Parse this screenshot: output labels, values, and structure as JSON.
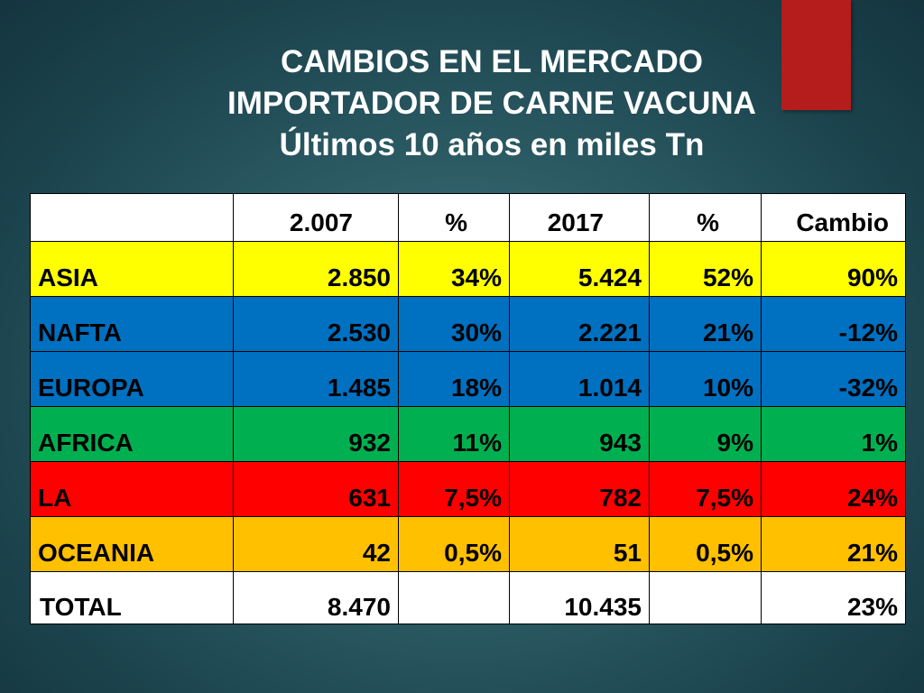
{
  "title": {
    "line1": "CAMBIOS EN EL MERCADO",
    "line2": "IMPORTADOR DE CARNE VACUNA",
    "line3": "Últimos 10 años en miles Tn"
  },
  "table": {
    "headers": [
      "",
      "2.007",
      "%",
      "2017",
      "%",
      "Cambio"
    ],
    "rows": [
      {
        "region": "ASIA",
        "v2007": "2.850",
        "p2007": "34%",
        "v2017": "5.424",
        "p2017": "52%",
        "cambio": "90%",
        "color": "#ffff00"
      },
      {
        "region": "NAFTA",
        "v2007": "2.530",
        "p2007": "30%",
        "v2017": "2.221",
        "p2017": "21%",
        "cambio": "-12%",
        "color": "#0070c0"
      },
      {
        "region": "EUROPA",
        "v2007": "1.485",
        "p2007": "18%",
        "v2017": "1.014",
        "p2017": "10%",
        "cambio": "-32%",
        "color": "#0070c0"
      },
      {
        "region": "AFRICA",
        "v2007": "932",
        "p2007": "11%",
        "v2017": "943",
        "p2017": "9%",
        "cambio": "1%",
        "color": "#00b050"
      },
      {
        "region": "LA",
        "v2007": "631",
        "p2007": "7,5%",
        "v2017": "782",
        "p2017": "7,5%",
        "cambio": "24%",
        "color": "#ff0000"
      },
      {
        "region": "OCEANIA",
        "v2007": "42",
        "p2007": "0,5%",
        "v2017": "51",
        "p2017": "0,5%",
        "cambio": "21%",
        "color": "#ffc000"
      }
    ],
    "total": {
      "label": "TOTAL",
      "v2007": "8.470",
      "p2007": "",
      "v2017": "10.435",
      "p2017": "",
      "cambio": "23%",
      "color": "#ffffff"
    }
  },
  "colors": {
    "accent_bar": "#b51c1c",
    "title_text": "#ffffff"
  }
}
